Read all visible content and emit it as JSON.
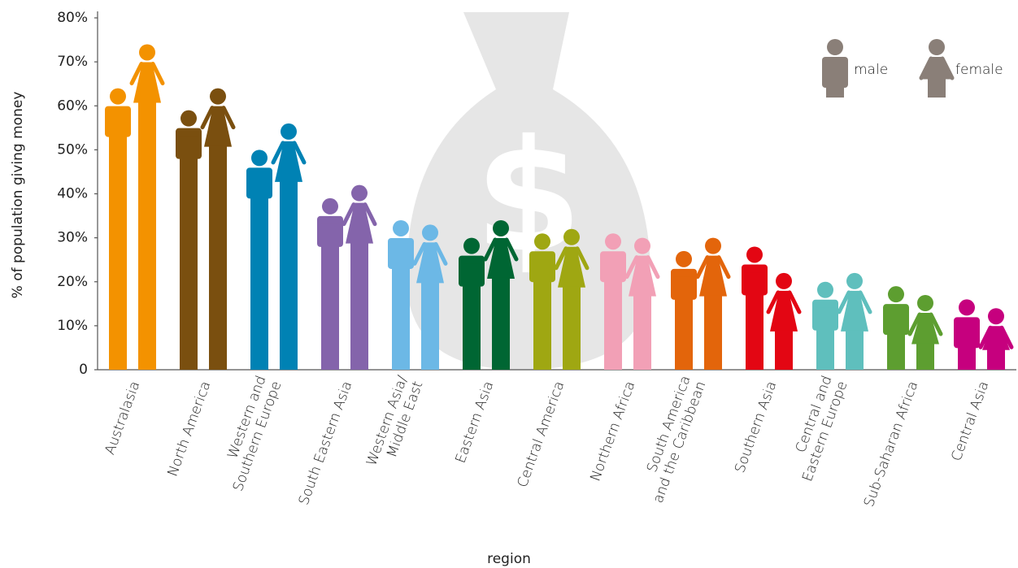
{
  "chart_data": {
    "type": "pictogram",
    "y_label": "% of population giving money",
    "x_label": "region",
    "categories": [
      "Australasia",
      "North America",
      "Western and\nSouthern Europe",
      "South Eastern Asia",
      "Western Asia/\nMiddle East",
      "Eastern Asia",
      "Central America",
      "Northern Africa",
      "South America\nand the Caribbean",
      "Southern Asia",
      "Central and\nEastern Europe",
      "Sub-Saharan Africa",
      "Central Asia"
    ],
    "category_colors": [
      "#f39200",
      "#7a4f0f",
      "#0082b4",
      "#8464ab",
      "#6cb8e6",
      "#006633",
      "#9fa712",
      "#f2a0b6",
      "#e3650b",
      "#e30613",
      "#5fbfbd",
      "#5d9e30",
      "#c6007e"
    ],
    "series": [
      {
        "name": "male",
        "color": "#8a7f78",
        "values": [
          64,
          59,
          50,
          39,
          34,
          30,
          31,
          31,
          27,
          28,
          20,
          19,
          16
        ]
      },
      {
        "name": "female",
        "color": "#8a7f78",
        "values": [
          74,
          64,
          56,
          42,
          33,
          34,
          32,
          30,
          30,
          22,
          22,
          17,
          14
        ]
      }
    ],
    "ylim": [
      0,
      80
    ],
    "yticks": [
      0,
      {
        "value": 10,
        "label": "10%"
      },
      {
        "value": 20,
        "label": "20%"
      },
      {
        "value": 30,
        "label": "30%"
      },
      {
        "value": 40,
        "label": "40%"
      },
      {
        "value": 50,
        "label": "50%"
      },
      {
        "value": 60,
        "label": "60%"
      },
      {
        "value": 70,
        "label": "70%"
      },
      {
        "value": 80,
        "label": "80%"
      }
    ],
    "legend": "upper right"
  }
}
